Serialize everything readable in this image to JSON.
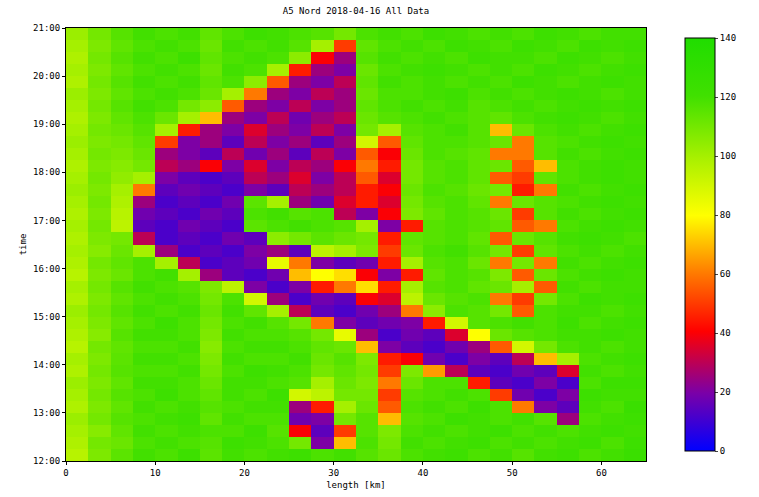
{
  "chart_data": {
    "type": "heatmap",
    "title": "A5 Nord 2018-04-16 All Data",
    "x_label": "length [km]",
    "y_label": "time",
    "x": [
      0,
      2.5,
      5,
      7.5,
      10,
      12.5,
      15,
      17.5,
      20,
      22.5,
      25,
      27.5,
      30,
      32.5,
      35,
      37.5,
      40,
      42.5,
      45,
      47.5,
      50,
      52.5,
      55,
      57.5,
      60,
      62.5,
      65
    ],
    "y": [
      12,
      12.25,
      12.5,
      12.75,
      13,
      13.25,
      13.5,
      13.75,
      14,
      14.25,
      14.5,
      14.75,
      15,
      15.25,
      15.5,
      15.75,
      16,
      16.25,
      16.5,
      16.75,
      17,
      17.25,
      17.5,
      17.75,
      18,
      18.25,
      18.5,
      18.75,
      19,
      19.25,
      19.5,
      19.75,
      20,
      20.25,
      20.5,
      20.75,
      21
    ],
    "cells": [
      [
        96,
        108,
        115,
        120,
        118,
        122,
        115,
        120,
        118,
        120,
        122,
        118,
        120,
        116,
        112,
        118,
        120,
        122,
        118,
        120,
        116,
        120,
        122,
        118,
        120,
        124
      ],
      [
        98,
        110,
        112,
        118,
        120,
        118,
        116,
        122,
        120,
        118,
        110,
        20,
        70,
        118,
        110,
        120,
        118,
        120,
        122,
        118,
        120,
        118,
        120,
        122,
        118,
        122
      ],
      [
        100,
        106,
        114,
        120,
        118,
        120,
        118,
        118,
        122,
        116,
        40,
        15,
        50,
        116,
        108,
        118,
        120,
        118,
        120,
        122,
        118,
        120,
        118,
        120,
        122,
        120
      ],
      [
        102,
        110,
        116,
        118,
        120,
        122,
        114,
        120,
        118,
        118,
        18,
        20,
        110,
        116,
        70,
        116,
        118,
        122,
        120,
        118,
        120,
        116,
        25,
        118,
        120,
        122
      ],
      [
        98,
        108,
        114,
        120,
        118,
        120,
        116,
        118,
        120,
        120,
        25,
        45,
        100,
        112,
        55,
        118,
        120,
        118,
        122,
        118,
        60,
        20,
        15,
        120,
        118,
        124
      ],
      [
        100,
        110,
        116,
        118,
        122,
        118,
        114,
        120,
        118,
        122,
        90,
        95,
        110,
        110,
        50,
        116,
        118,
        120,
        118,
        50,
        18,
        12,
        20,
        122,
        120,
        120
      ],
      [
        102,
        108,
        114,
        120,
        120,
        118,
        112,
        120,
        120,
        118,
        116,
        100,
        112,
        108,
        60,
        112,
        118,
        118,
        45,
        15,
        12,
        20,
        12,
        118,
        122,
        122
      ],
      [
        98,
        110,
        116,
        118,
        118,
        120,
        110,
        118,
        122,
        120,
        118,
        110,
        114,
        110,
        50,
        108,
        65,
        30,
        15,
        12,
        18,
        15,
        35,
        120,
        118,
        120
      ],
      [
        100,
        108,
        115,
        120,
        120,
        118,
        108,
        120,
        118,
        118,
        120,
        112,
        116,
        108,
        45,
        40,
        18,
        12,
        20,
        15,
        30,
        70,
        100,
        118,
        120,
        122
      ],
      [
        96,
        110,
        114,
        118,
        118,
        120,
        106,
        118,
        120,
        120,
        118,
        114,
        112,
        70,
        20,
        15,
        12,
        18,
        25,
        55,
        90,
        110,
        118,
        120,
        118,
        120
      ],
      [
        98,
        106,
        116,
        120,
        120,
        118,
        108,
        120,
        118,
        118,
        116,
        110,
        85,
        25,
        12,
        18,
        15,
        35,
        80,
        112,
        116,
        118,
        120,
        120,
        122,
        120
      ],
      [
        100,
        108,
        114,
        118,
        122,
        118,
        110,
        118,
        120,
        116,
        110,
        60,
        20,
        15,
        18,
        20,
        45,
        90,
        116,
        118,
        120,
        118,
        122,
        118,
        120,
        122
      ],
      [
        102,
        110,
        116,
        120,
        118,
        120,
        112,
        120,
        114,
        100,
        30,
        15,
        12,
        18,
        25,
        60,
        105,
        118,
        116,
        110,
        55,
        118,
        120,
        120,
        118,
        120
      ],
      [
        98,
        108,
        114,
        118,
        120,
        118,
        110,
        118,
        90,
        25,
        12,
        18,
        15,
        40,
        35,
        95,
        112,
        116,
        118,
        60,
        50,
        110,
        118,
        122,
        120,
        122
      ],
      [
        100,
        110,
        116,
        120,
        118,
        116,
        108,
        95,
        20,
        12,
        20,
        45,
        60,
        75,
        45,
        100,
        116,
        118,
        114,
        112,
        100,
        55,
        120,
        118,
        120,
        120
      ],
      [
        96,
        108,
        112,
        118,
        120,
        100,
        25,
        15,
        12,
        18,
        70,
        80,
        75,
        40,
        20,
        45,
        114,
        118,
        116,
        108,
        55,
        112,
        118,
        120,
        122,
        120
      ],
      [
        98,
        110,
        114,
        118,
        100,
        30,
        12,
        15,
        18,
        85,
        60,
        20,
        15,
        18,
        45,
        100,
        116,
        118,
        112,
        60,
        110,
        60,
        120,
        118,
        120,
        122
      ],
      [
        100,
        106,
        112,
        100,
        25,
        12,
        15,
        12,
        20,
        25,
        15,
        95,
        100,
        108,
        50,
        112,
        118,
        120,
        116,
        110,
        50,
        114,
        118,
        120,
        118,
        120
      ],
      [
        98,
        108,
        110,
        30,
        12,
        15,
        12,
        18,
        15,
        105,
        110,
        115,
        112,
        110,
        45,
        114,
        116,
        118,
        114,
        55,
        112,
        116,
        120,
        122,
        120,
        118
      ],
      [
        100,
        110,
        95,
        15,
        12,
        18,
        15,
        12,
        115,
        118,
        120,
        118,
        116,
        100,
        20,
        45,
        116,
        118,
        116,
        114,
        55,
        60,
        118,
        120,
        122,
        120
      ],
      [
        98,
        108,
        96,
        18,
        15,
        12,
        18,
        15,
        118,
        120,
        116,
        118,
        30,
        20,
        40,
        108,
        114,
        118,
        116,
        112,
        50,
        116,
        120,
        118,
        120,
        122
      ],
      [
        100,
        110,
        98,
        25,
        12,
        15,
        12,
        18,
        115,
        100,
        25,
        18,
        35,
        45,
        35,
        110,
        116,
        118,
        114,
        60,
        112,
        116,
        118,
        120,
        122,
        120
      ],
      [
        102,
        108,
        100,
        60,
        15,
        18,
        15,
        12,
        20,
        15,
        30,
        25,
        30,
        45,
        40,
        112,
        118,
        116,
        112,
        110,
        45,
        60,
        120,
        118,
        120,
        122
      ],
      [
        100,
        110,
        104,
        100,
        20,
        15,
        12,
        15,
        30,
        25,
        35,
        20,
        30,
        55,
        35,
        110,
        116,
        118,
        114,
        55,
        50,
        114,
        118,
        120,
        122,
        120
      ],
      [
        98,
        108,
        106,
        110,
        30,
        25,
        40,
        20,
        35,
        20,
        30,
        25,
        40,
        60,
        45,
        110,
        116,
        118,
        114,
        112,
        55,
        70,
        118,
        120,
        122,
        120
      ],
      [
        100,
        110,
        108,
        112,
        25,
        20,
        15,
        30,
        18,
        25,
        15,
        30,
        20,
        55,
        40,
        112,
        118,
        116,
        114,
        60,
        60,
        116,
        120,
        118,
        120,
        122
      ],
      [
        102,
        108,
        110,
        114,
        50,
        20,
        25,
        15,
        30,
        20,
        25,
        15,
        25,
        90,
        55,
        114,
        118,
        118,
        116,
        112,
        60,
        116,
        118,
        120,
        122,
        120
      ],
      [
        100,
        110,
        112,
        116,
        100,
        45,
        25,
        20,
        35,
        25,
        20,
        30,
        20,
        110,
        100,
        116,
        118,
        120,
        116,
        70,
        112,
        118,
        120,
        118,
        120,
        122
      ],
      [
        98,
        108,
        114,
        118,
        112,
        100,
        70,
        25,
        20,
        30,
        18,
        25,
        30,
        112,
        116,
        118,
        120,
        118,
        116,
        114,
        118,
        120,
        122,
        120,
        118,
        120
      ],
      [
        100,
        110,
        116,
        120,
        118,
        110,
        105,
        55,
        25,
        20,
        30,
        20,
        25,
        114,
        118,
        120,
        118,
        120,
        116,
        118,
        120,
        118,
        120,
        122,
        120,
        122
      ],
      [
        102,
        108,
        114,
        118,
        120,
        118,
        112,
        100,
        60,
        25,
        20,
        30,
        25,
        112,
        118,
        118,
        120,
        122,
        118,
        120,
        118,
        120,
        122,
        120,
        118,
        120
      ],
      [
        98,
        110,
        116,
        120,
        118,
        120,
        114,
        118,
        105,
        55,
        25,
        20,
        30,
        114,
        120,
        118,
        120,
        118,
        120,
        118,
        122,
        120,
        118,
        120,
        122,
        120
      ],
      [
        100,
        108,
        114,
        118,
        120,
        118,
        112,
        120,
        118,
        100,
        45,
        25,
        20,
        112,
        118,
        120,
        122,
        120,
        118,
        120,
        118,
        122,
        120,
        118,
        120,
        122
      ],
      [
        98,
        110,
        116,
        120,
        118,
        122,
        114,
        118,
        120,
        118,
        105,
        40,
        25,
        116,
        120,
        118,
        120,
        118,
        122,
        120,
        120,
        118,
        122,
        120,
        118,
        120
      ],
      [
        100,
        108,
        114,
        118,
        120,
        118,
        112,
        120,
        118,
        120,
        116,
        100,
        50,
        114,
        118,
        120,
        118,
        122,
        120,
        118,
        122,
        120,
        118,
        122,
        120,
        122
      ],
      [
        102,
        110,
        116,
        120,
        118,
        120,
        114,
        118,
        122,
        120,
        118,
        116,
        110,
        118,
        120,
        118,
        122,
        120,
        118,
        120,
        118,
        122,
        120,
        118,
        120,
        120
      ]
    ],
    "xlim": [
      0,
      65
    ],
    "ylim": [
      12,
      21
    ],
    "xticks": [
      0,
      10,
      20,
      30,
      40,
      50,
      60
    ],
    "yticks": [
      {
        "value": 12,
        "label": "12:00"
      },
      {
        "value": 13,
        "label": "13:00"
      },
      {
        "value": 14,
        "label": "14:00"
      },
      {
        "value": 15,
        "label": "15:00"
      },
      {
        "value": 16,
        "label": "16:00"
      },
      {
        "value": 17,
        "label": "17:00"
      },
      {
        "value": 18,
        "label": "18:00"
      },
      {
        "value": 19,
        "label": "19:00"
      },
      {
        "value": 20,
        "label": "20:00"
      },
      {
        "value": 21,
        "label": "21:00"
      }
    ],
    "colorbar": {
      "range": [
        0,
        140
      ],
      "ticks": [
        0,
        20,
        40,
        60,
        80,
        100,
        120,
        140
      ]
    }
  }
}
